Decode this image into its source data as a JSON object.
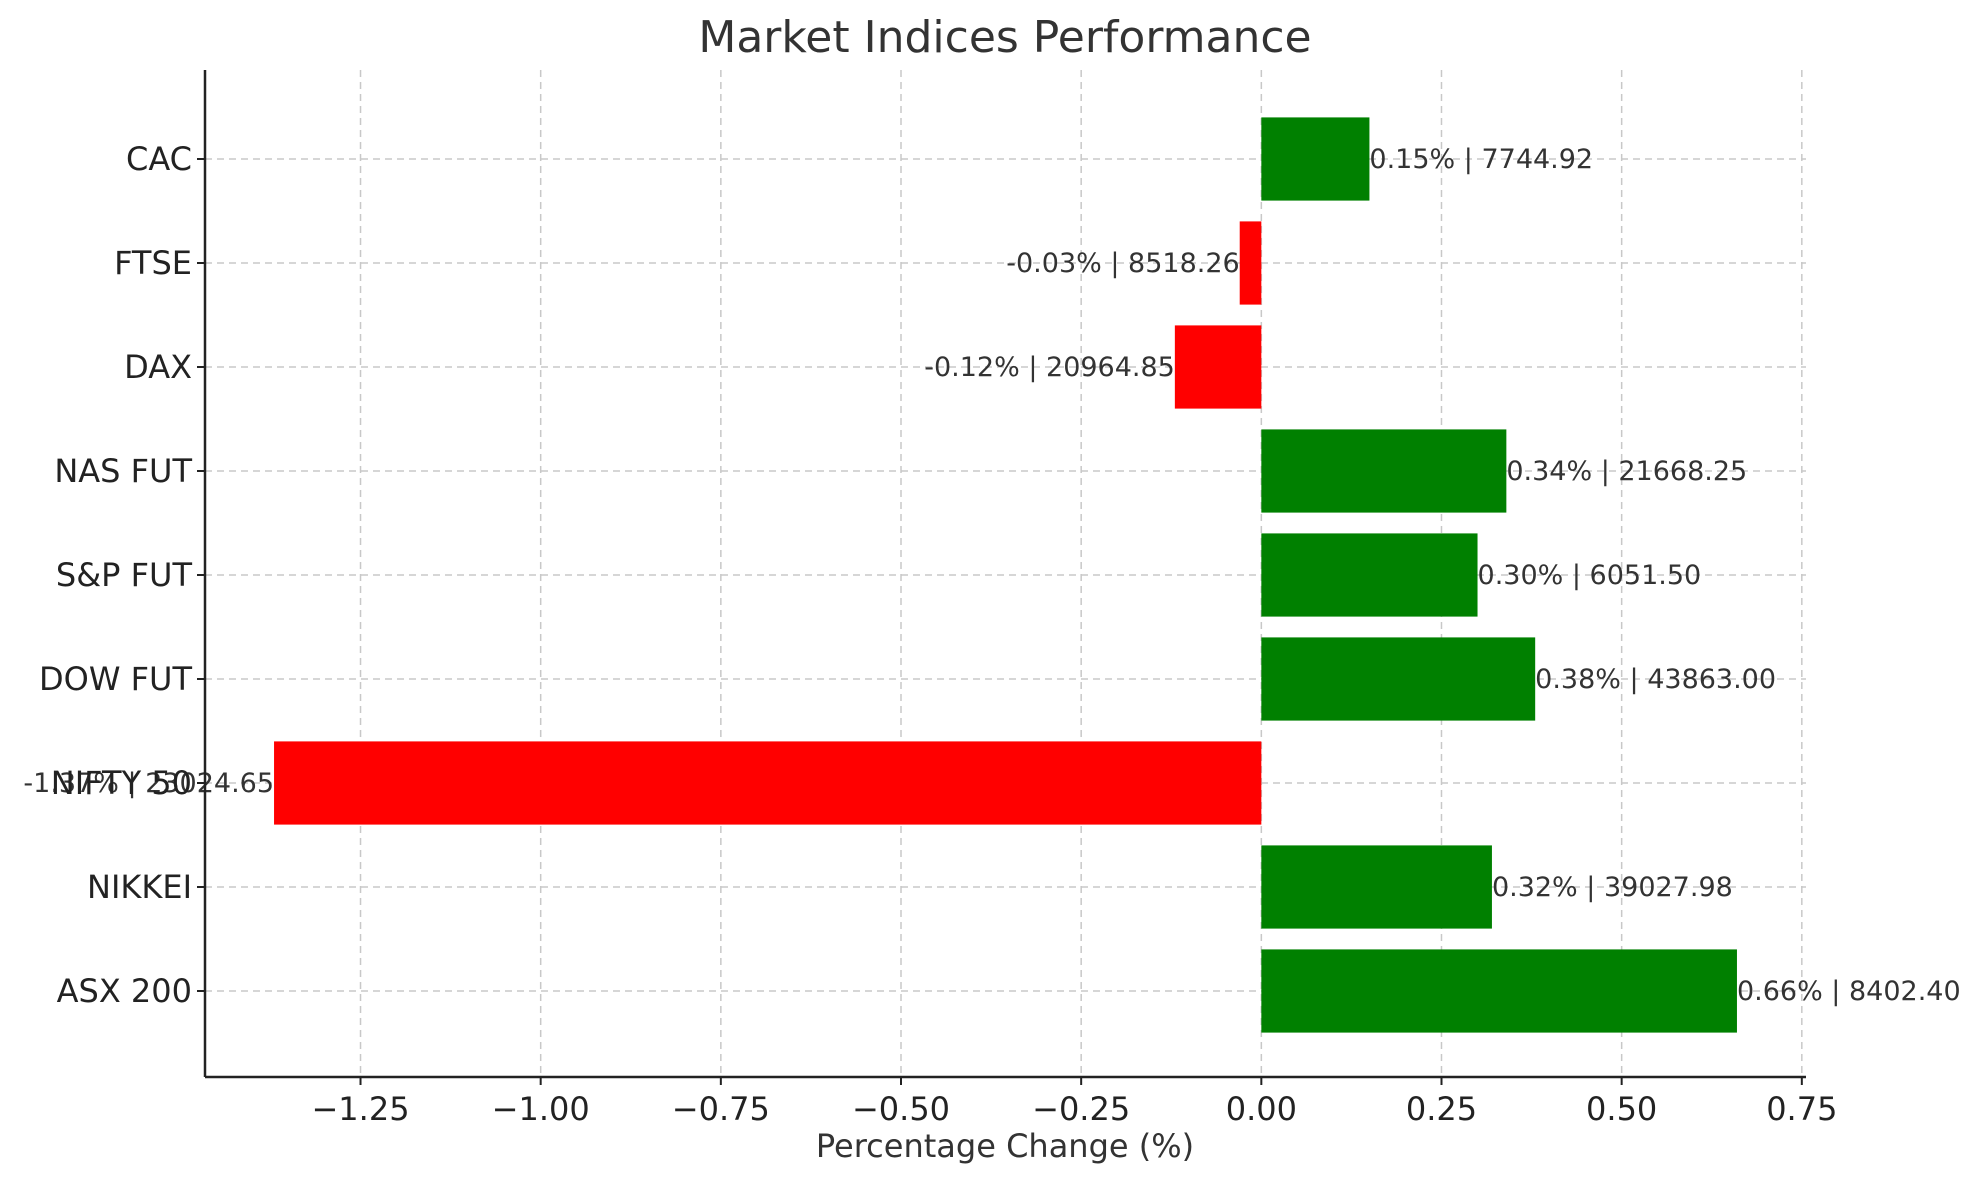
{
  "chart_data": {
    "type": "bar",
    "orientation": "horizontal",
    "title": "Market Indices Performance",
    "xlabel": "Percentage Change (%)",
    "ylabel": "",
    "categories": [
      "ASX 200",
      "NIKKEI",
      "NIFTY 50",
      "DOW FUT",
      "S&P FUT",
      "NAS FUT",
      "DAX",
      "FTSE",
      "CAC"
    ],
    "values": [
      0.66,
      0.32,
      -1.37,
      0.38,
      0.3,
      0.34,
      -0.12,
      -0.03,
      0.15
    ],
    "data_labels": [
      "0.66% | 8402.40",
      "0.32% | 39027.98",
      "-1.37% | 23024.65",
      "0.38% | 43863.00",
      "0.30% | 6051.50",
      "0.34% | 21668.25",
      "-0.12% | 20964.85",
      "-0.03% | 8518.26",
      "0.15% | 7744.92"
    ],
    "xlim": [
      -1.4658,
      0.7558
    ],
    "xticks": [
      -1.25,
      -1.0,
      -0.75,
      -0.5,
      -0.25,
      0.0,
      0.25,
      0.5,
      0.75
    ],
    "xtick_labels": [
      "−1.25",
      "−1.00",
      "−0.75",
      "−0.50",
      "−0.25",
      "0.00",
      "0.25",
      "0.50",
      "0.75"
    ],
    "grid": true,
    "colors": {
      "positive": "#008000",
      "negative": "#ff0000"
    }
  }
}
